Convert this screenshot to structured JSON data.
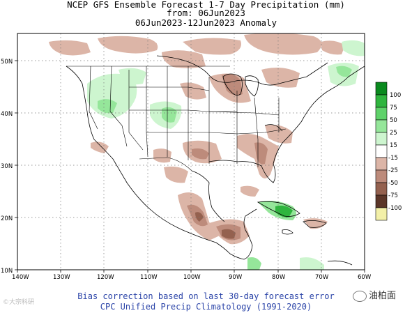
{
  "title": {
    "line1": "NCEP GFS Ensemble Forecast 1-7 Day Precipitation (mm)",
    "line2": "from: 06Jun2023",
    "line3": "06Jun2023-12Jun2023 Anomaly"
  },
  "footer": {
    "line1": "Bias correction based on last 30-day forecast error",
    "line2": "CPC Unified Precip Climatology (1991-2020)"
  },
  "axes": {
    "longitude_labels": [
      "140W",
      "130W",
      "120W",
      "110W",
      "100W",
      "90W",
      "80W",
      "70W",
      "60W"
    ],
    "latitude_labels": [
      "50N",
      "40N",
      "30N",
      "20N",
      "10N"
    ],
    "grid": "dotted"
  },
  "legend": {
    "labels": [
      "100",
      "75",
      "50",
      "25",
      "15",
      "-15",
      "-25",
      "-50",
      "-75",
      "-100"
    ],
    "colors": [
      "#0a8a1e",
      "#2fb53e",
      "#5fd26a",
      "#95e69a",
      "#cdf5cf",
      "#ffffff",
      "#dcb5a7",
      "#bd8b7b",
      "#94614f",
      "#5b3629",
      "#f3f0a8"
    ]
  },
  "colors": {
    "land": "#ffffff",
    "ocean": "#ffffff",
    "dry_light": "#dcb5a7",
    "dry_mid": "#bd8b7b",
    "dry_dark": "#94614f",
    "wet_light": "#cdf5cf",
    "wet_mid": "#95e69a",
    "wet_strong": "#2fb53e"
  },
  "watermarks": {
    "left": "©大宗科研",
    "right": "油柏面"
  }
}
